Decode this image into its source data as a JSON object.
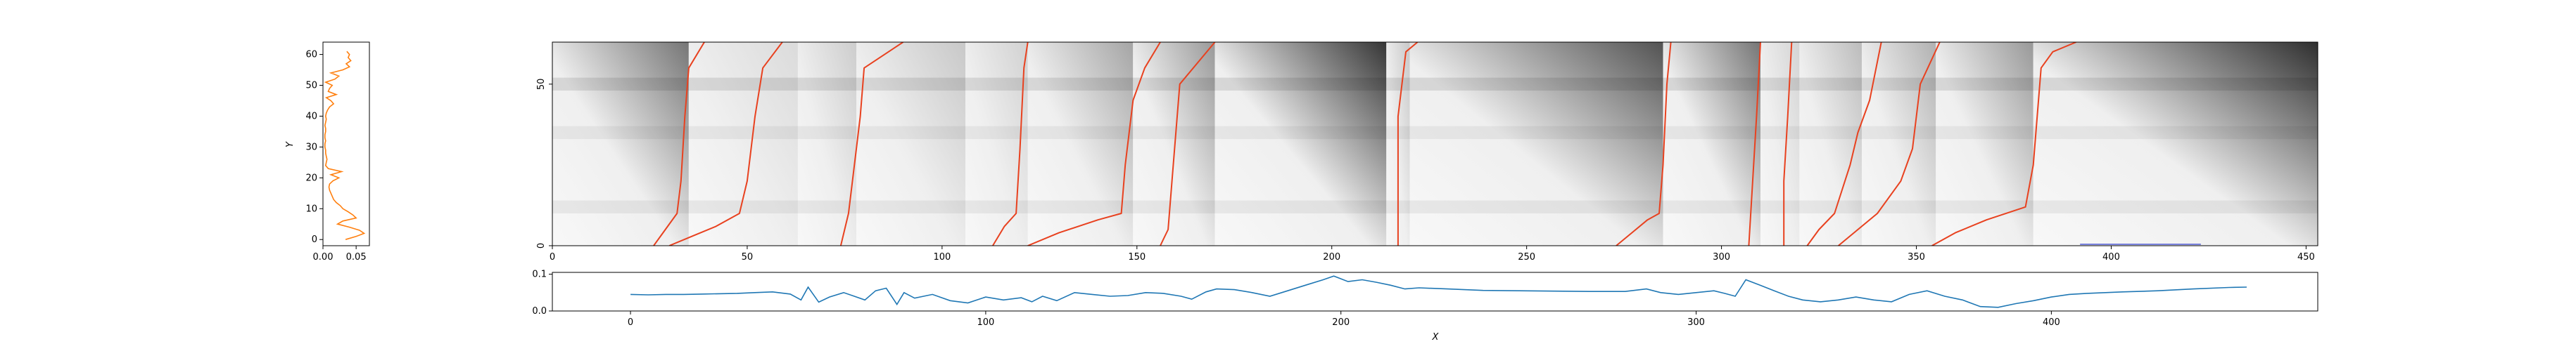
{
  "chart_data": [
    {
      "id": "y_marginal",
      "type": "line",
      "orientation": "vertical",
      "xlabel": "",
      "ylabel": "Y",
      "xlim": [
        0,
        0.07
      ],
      "ylim": [
        -2,
        64
      ],
      "x_ticks": [
        "0.00",
        "0.05"
      ],
      "y_ticks": [
        "0",
        "10",
        "20",
        "30",
        "40",
        "50",
        "60"
      ],
      "color": "#ff7f0e",
      "series": [
        {
          "values": [
            [
              0.034,
              0
            ],
            [
              0.05,
              1
            ],
            [
              0.062,
              2
            ],
            [
              0.055,
              3
            ],
            [
              0.04,
              4
            ],
            [
              0.022,
              5
            ],
            [
              0.03,
              6
            ],
            [
              0.05,
              7
            ],
            [
              0.045,
              8
            ],
            [
              0.038,
              9
            ],
            [
              0.03,
              10
            ],
            [
              0.026,
              11
            ],
            [
              0.02,
              12
            ],
            [
              0.016,
              13
            ],
            [
              0.014,
              14
            ],
            [
              0.012,
              15
            ],
            [
              0.01,
              16
            ],
            [
              0.009,
              17
            ],
            [
              0.01,
              18
            ],
            [
              0.015,
              19
            ],
            [
              0.024,
              20
            ],
            [
              0.012,
              21
            ],
            [
              0.028,
              22
            ],
            [
              0.008,
              23
            ],
            [
              0.004,
              24
            ],
            [
              0.005,
              25
            ],
            [
              0.006,
              26
            ],
            [
              0.005,
              27
            ],
            [
              0.004,
              28
            ],
            [
              0.004,
              29
            ],
            [
              0.003,
              30
            ],
            [
              0.003,
              31
            ],
            [
              0.004,
              32
            ],
            [
              0.003,
              33
            ],
            [
              0.003,
              34
            ],
            [
              0.004,
              35
            ],
            [
              0.004,
              36
            ],
            [
              0.003,
              37
            ],
            [
              0.004,
              38
            ],
            [
              0.005,
              39
            ],
            [
              0.004,
              40
            ],
            [
              0.005,
              41
            ],
            [
              0.007,
              42
            ],
            [
              0.01,
              43
            ],
            [
              0.016,
              44
            ],
            [
              0.012,
              45
            ],
            [
              0.005,
              46
            ],
            [
              0.02,
              47
            ],
            [
              0.008,
              48
            ],
            [
              0.01,
              49
            ],
            [
              0.014,
              50
            ],
            [
              0.004,
              51
            ],
            [
              0.018,
              52
            ],
            [
              0.024,
              53
            ],
            [
              0.012,
              54
            ],
            [
              0.03,
              55
            ],
            [
              0.04,
              56
            ],
            [
              0.035,
              57
            ],
            [
              0.042,
              58
            ],
            [
              0.038,
              59
            ],
            [
              0.04,
              60
            ],
            [
              0.036,
              61
            ]
          ]
        }
      ]
    },
    {
      "id": "cost_matrix",
      "type": "heatmap",
      "xlim": [
        0,
        453
      ],
      "ylim": [
        0,
        63
      ],
      "x_ticks": [
        "0",
        "50",
        "100",
        "150",
        "200",
        "250",
        "300",
        "350",
        "400",
        "450"
      ],
      "y_ticks": [
        "0",
        "50"
      ],
      "colormap": "Greys",
      "path_color": "#e8411f",
      "scale_bar_color": "#4f5bd5",
      "scale_bar_x": [
        392,
        423
      ],
      "regions": [
        [
          0,
          35,
          0.55
        ],
        [
          35,
          63,
          0.12
        ],
        [
          63,
          78,
          0.18
        ],
        [
          78,
          106,
          0.2
        ],
        [
          106,
          122,
          0.16
        ],
        [
          122,
          149,
          0.35
        ],
        [
          149,
          170,
          0.4
        ],
        [
          170,
          214,
          0.82
        ],
        [
          214,
          220,
          0.2
        ],
        [
          220,
          285,
          0.7
        ],
        [
          285,
          310,
          0.55
        ],
        [
          310,
          320,
          0.15
        ],
        [
          320,
          336,
          0.25
        ],
        [
          336,
          355,
          0.3
        ],
        [
          355,
          380,
          0.4
        ],
        [
          380,
          453,
          0.85
        ]
      ],
      "paths": [
        [
          [
            26,
            0
          ],
          [
            29,
            5
          ],
          [
            32,
            10
          ],
          [
            33,
            20
          ],
          [
            34,
            40
          ],
          [
            35,
            55
          ],
          [
            39,
            63
          ]
        ],
        [
          [
            30,
            0
          ],
          [
            36,
            3
          ],
          [
            42,
            6
          ],
          [
            48,
            10
          ],
          [
            50,
            20
          ],
          [
            52,
            40
          ],
          [
            54,
            55
          ],
          [
            59,
            63
          ]
        ],
        [
          [
            74,
            0
          ],
          [
            76,
            10
          ],
          [
            77,
            20
          ],
          [
            79,
            40
          ],
          [
            80,
            55
          ],
          [
            90,
            63
          ]
        ],
        [
          [
            113,
            0
          ],
          [
            116,
            6
          ],
          [
            119,
            10
          ],
          [
            120,
            30
          ],
          [
            121,
            55
          ],
          [
            122,
            63
          ]
        ],
        [
          [
            122,
            0
          ],
          [
            130,
            4
          ],
          [
            140,
            8
          ],
          [
            146,
            10
          ],
          [
            147,
            25
          ],
          [
            149,
            45
          ],
          [
            152,
            55
          ],
          [
            156,
            63
          ]
        ],
        [
          [
            156,
            0
          ],
          [
            158,
            5
          ],
          [
            159,
            20
          ],
          [
            161,
            50
          ],
          [
            170,
            63
          ]
        ],
        [
          [
            217,
            0
          ],
          [
            217,
            40
          ],
          [
            219,
            60
          ],
          [
            222,
            63
          ]
        ],
        [
          [
            273,
            0
          ],
          [
            277,
            4
          ],
          [
            281,
            8
          ],
          [
            284,
            10
          ],
          [
            285,
            25
          ],
          [
            286,
            50
          ],
          [
            287,
            63
          ]
        ],
        [
          [
            307,
            0
          ],
          [
            308,
            20
          ],
          [
            309,
            40
          ],
          [
            310,
            63
          ]
        ],
        [
          [
            316,
            0
          ],
          [
            316,
            20
          ],
          [
            317,
            40
          ],
          [
            318,
            63
          ]
        ],
        [
          [
            322,
            0
          ],
          [
            325,
            5
          ],
          [
            329,
            10
          ],
          [
            333,
            25
          ],
          [
            335,
            35
          ],
          [
            338,
            45
          ],
          [
            341,
            63
          ]
        ],
        [
          [
            330,
            0
          ],
          [
            335,
            5
          ],
          [
            340,
            10
          ],
          [
            346,
            20
          ],
          [
            349,
            30
          ],
          [
            351,
            50
          ],
          [
            356,
            63
          ]
        ],
        [
          [
            354,
            0
          ],
          [
            360,
            4
          ],
          [
            368,
            8
          ],
          [
            378,
            12
          ],
          [
            380,
            25
          ],
          [
            382,
            55
          ],
          [
            385,
            60
          ],
          [
            391,
            63
          ]
        ]
      ]
    },
    {
      "id": "x_marginal",
      "type": "line",
      "xlabel": "X",
      "ylabel": "",
      "xlim": [
        -22,
        475
      ],
      "ylim": [
        0,
        0.105
      ],
      "x_ticks": [
        "0",
        "100",
        "200",
        "300",
        "400"
      ],
      "y_ticks": [
        "0.0",
        "0.1"
      ],
      "color": "#1f77b4",
      "series": [
        {
          "values": [
            [
              0,
              0.045
            ],
            [
              5,
              0.044
            ],
            [
              10,
              0.045
            ],
            [
              15,
              0.045
            ],
            [
              20,
              0.046
            ],
            [
              25,
              0.047
            ],
            [
              30,
              0.048
            ],
            [
              35,
              0.05
            ],
            [
              40,
              0.052
            ],
            [
              45,
              0.046
            ],
            [
              48,
              0.03
            ],
            [
              50,
              0.065
            ],
            [
              53,
              0.024
            ],
            [
              56,
              0.038
            ],
            [
              60,
              0.05
            ],
            [
              63,
              0.04
            ],
            [
              66,
              0.03
            ],
            [
              69,
              0.055
            ],
            [
              72,
              0.062
            ],
            [
              75,
              0.018
            ],
            [
              77,
              0.05
            ],
            [
              80,
              0.035
            ],
            [
              85,
              0.045
            ],
            [
              90,
              0.028
            ],
            [
              95,
              0.022
            ],
            [
              100,
              0.038
            ],
            [
              105,
              0.03
            ],
            [
              110,
              0.036
            ],
            [
              113,
              0.025
            ],
            [
              116,
              0.04
            ],
            [
              120,
              0.028
            ],
            [
              125,
              0.05
            ],
            [
              130,
              0.045
            ],
            [
              135,
              0.04
            ],
            [
              140,
              0.042
            ],
            [
              145,
              0.05
            ],
            [
              150,
              0.048
            ],
            [
              155,
              0.04
            ],
            [
              158,
              0.032
            ],
            [
              162,
              0.052
            ],
            [
              165,
              0.06
            ],
            [
              170,
              0.058
            ],
            [
              175,
              0.05
            ],
            [
              180,
              0.04
            ],
            [
              185,
              0.055
            ],
            [
              190,
              0.07
            ],
            [
              195,
              0.085
            ],
            [
              198,
              0.095
            ],
            [
              202,
              0.08
            ],
            [
              206,
              0.085
            ],
            [
              210,
              0.078
            ],
            [
              214,
              0.07
            ],
            [
              218,
              0.06
            ],
            [
              222,
              0.063
            ],
            [
              230,
              0.06
            ],
            [
              240,
              0.056
            ],
            [
              250,
              0.055
            ],
            [
              260,
              0.054
            ],
            [
              270,
              0.053
            ],
            [
              280,
              0.053
            ],
            [
              286,
              0.06
            ],
            [
              290,
              0.05
            ],
            [
              295,
              0.045
            ],
            [
              300,
              0.05
            ],
            [
              305,
              0.055
            ],
            [
              308,
              0.048
            ],
            [
              311,
              0.04
            ],
            [
              314,
              0.085
            ],
            [
              318,
              0.07
            ],
            [
              322,
              0.055
            ],
            [
              326,
              0.04
            ],
            [
              330,
              0.03
            ],
            [
              335,
              0.025
            ],
            [
              340,
              0.03
            ],
            [
              345,
              0.038
            ],
            [
              350,
              0.03
            ],
            [
              355,
              0.025
            ],
            [
              360,
              0.045
            ],
            [
              365,
              0.055
            ],
            [
              370,
              0.04
            ],
            [
              375,
              0.03
            ],
            [
              380,
              0.012
            ],
            [
              385,
              0.01
            ],
            [
              390,
              0.02
            ],
            [
              395,
              0.028
            ],
            [
              400,
              0.038
            ],
            [
              405,
              0.045
            ],
            [
              410,
              0.048
            ],
            [
              420,
              0.052
            ],
            [
              430,
              0.055
            ],
            [
              440,
              0.06
            ],
            [
              450,
              0.064
            ],
            [
              455,
              0.065
            ]
          ]
        }
      ]
    }
  ]
}
